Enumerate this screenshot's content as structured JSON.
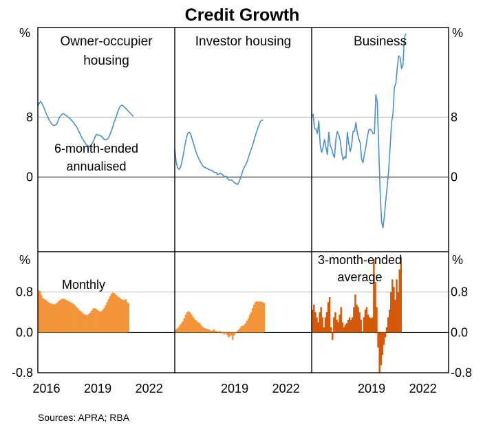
{
  "chart_data": {
    "type": "multi-panel line and bar",
    "title": "Credit Growth",
    "source": "Sources: APRA; RBA",
    "colors": {
      "line": "#4a8fd0",
      "monthly_bar": "#f3953a",
      "average_bar": "#d45a0a",
      "grid": "#b4b4b4"
    },
    "top_axis": {
      "unit": "%",
      "ylim": [
        -10,
        20
      ],
      "ticks": [
        0,
        8
      ],
      "tick_labels": [
        "0",
        "8"
      ]
    },
    "bottom_axis": {
      "unit": "%",
      "ylim": [
        -0.8,
        1.6
      ],
      "ticks": [
        -0.8,
        0.0,
        0.8
      ],
      "tick_labels": [
        "-0.8",
        "0.0",
        "0.8"
      ]
    },
    "x_tick_labels": [
      [
        "2016",
        "2019",
        "2022"
      ],
      [
        "2019",
        "2022"
      ],
      [
        "2019",
        "2022"
      ]
    ],
    "annotations": {
      "line": "6-month-ended annualised",
      "line_lines": [
        "6-month-ended",
        "annualised"
      ],
      "monthly": "Monthly",
      "average": "3-month-ended average",
      "average_lines": [
        "3-month-ended",
        "average"
      ]
    },
    "panels": [
      {
        "title_lines": [
          "Owner-occupier",
          "housing"
        ],
        "x_range": [
          2015.5,
          2023.5
        ],
        "x_ticks": [
          2016,
          2019,
          2022
        ],
        "line_start": 2015.5,
        "line_step": 0.08333,
        "line": [
          9.5,
          9.9,
          10.1,
          9.8,
          9.4,
          8.9,
          8.4,
          8.0,
          7.6,
          7.3,
          7.0,
          6.9,
          6.9,
          7.0,
          7.4,
          7.9,
          8.2,
          8.4,
          8.5,
          8.3,
          8.2,
          8.1,
          7.9,
          7.7,
          7.5,
          7.3,
          7.0,
          6.8,
          6.4,
          6.0,
          5.6,
          5.2,
          4.9,
          4.6,
          4.3,
          4.2,
          4.0,
          4.2,
          4.5,
          4.8,
          5.3,
          5.7,
          5.6,
          5.6,
          5.5,
          5.4,
          5.1,
          5.0,
          5.0,
          5.1,
          5.4,
          5.9,
          6.4,
          7.0,
          7.6,
          8.1,
          8.7,
          9.2,
          9.5,
          9.6,
          9.5,
          9.3,
          9.1,
          8.9,
          8.7,
          8.5,
          8.3,
          8.1
        ],
        "monthly": [
          0.83,
          0.82,
          0.74,
          0.68,
          0.66,
          0.65,
          0.62,
          0.6,
          0.58,
          0.57,
          0.56,
          0.56,
          0.57,
          0.59,
          0.62,
          0.64,
          0.66,
          0.67,
          0.66,
          0.65,
          0.63,
          0.62,
          0.6,
          0.59,
          0.57,
          0.55,
          0.52,
          0.49,
          0.46,
          0.43,
          0.41,
          0.38,
          0.36,
          0.35,
          0.34,
          0.36,
          0.39,
          0.43,
          0.47,
          0.48,
          0.47,
          0.45,
          0.43,
          0.41,
          0.42,
          0.45,
          0.49,
          0.54,
          0.6,
          0.66,
          0.72,
          0.77,
          0.79,
          0.78,
          0.75,
          0.73,
          0.7,
          0.68,
          0.66,
          0.65,
          0.64,
          0.66,
          0.6,
          0.58
        ],
        "monthly_start": 2015.5
      },
      {
        "title_lines": [
          "Investor housing"
        ],
        "x_range": [
          2015.5,
          2023.5
        ],
        "x_ticks": [
          2019,
          2022
        ],
        "line_start": 2015.5,
        "line_step": 0.08333,
        "line": [
          3.8,
          2.0,
          1.2,
          1.0,
          1.3,
          2.0,
          3.0,
          4.1,
          5.1,
          5.8,
          6.0,
          5.8,
          5.2,
          4.6,
          3.9,
          3.3,
          2.8,
          2.4,
          2.0,
          1.7,
          1.4,
          1.3,
          1.2,
          1.1,
          1.0,
          0.9,
          0.9,
          0.7,
          0.6,
          0.6,
          0.3,
          0.4,
          0.5,
          0.4,
          0.2,
          0.0,
          0.1,
          -0.2,
          -0.4,
          -0.4,
          -0.4,
          -0.6,
          -0.8,
          -0.9,
          -1.0,
          -0.7,
          -0.2,
          0.4,
          1.0,
          1.4,
          1.7,
          2.2,
          2.8,
          3.4,
          3.9,
          4.5,
          5.2,
          5.8,
          6.4,
          6.9,
          7.4,
          7.6,
          7.6
        ],
        "monthly": [
          0.05,
          0.07,
          0.1,
          0.14,
          0.18,
          0.22,
          0.28,
          0.35,
          0.4,
          0.42,
          0.4,
          0.36,
          0.32,
          0.28,
          0.25,
          0.22,
          0.2,
          0.18,
          0.14,
          0.11,
          0.09,
          0.08,
          0.07,
          0.06,
          0.05,
          0.03,
          0.04,
          0.06,
          0.03,
          0.02,
          0.01,
          0.03,
          -0.02,
          -0.01,
          -0.04,
          -0.01,
          -0.05,
          -0.1,
          -0.08,
          -0.06,
          -0.15,
          -0.06,
          -0.02,
          0.02,
          0.05,
          0.08,
          0.12,
          0.13,
          0.15,
          0.18,
          0.23,
          0.28,
          0.35,
          0.4,
          0.48,
          0.55,
          0.6,
          0.62,
          0.6,
          0.62,
          0.61,
          0.6,
          0.58
        ],
        "monthly_start": 2015.5
      },
      {
        "title_lines": [
          "Business"
        ],
        "x_range": [
          2015.5,
          2023.5
        ],
        "x_ticks": [
          2019,
          2022
        ],
        "line_start": 2015.5,
        "line_step": 0.08333,
        "line": [
          8.0,
          8.4,
          6.5,
          6.4,
          5.8,
          7.5,
          4.2,
          3.3,
          4.0,
          5.0,
          4.0,
          3.0,
          6.0,
          4.2,
          3.8,
          3.0,
          2.6,
          5.1,
          6.1,
          5.6,
          4.9,
          3.3,
          2.3,
          2.7,
          2.5,
          6.0,
          4.5,
          3.4,
          4.2,
          6.1,
          6.1,
          7.3,
          5.9,
          5.1,
          4.6,
          2.4,
          1.9,
          3.1,
          4.0,
          5.3,
          6.3,
          6.4,
          6.2,
          5.8,
          5.8,
          11.0,
          10.0,
          4.0,
          -2.0,
          -6.0,
          -6.8,
          -5.2,
          -3.0,
          -1.2,
          1.0,
          4.0,
          7.3,
          8.4,
          12.0,
          12.5,
          14.6,
          16.2,
          16.0,
          14.5,
          15.0,
          18.6,
          19.2
        ],
        "avg": [
          0.45,
          0.55,
          0.4,
          0.3,
          0.2,
          0.4,
          0.5,
          0.3,
          0.1,
          0.3,
          0.4,
          0.6,
          0.7,
          0.1,
          -0.15,
          0.3,
          0.4,
          0.25,
          0.2,
          0.35,
          0.5,
          0.2,
          0.1,
          0.15,
          0.18,
          0.25,
          0.3,
          0.25,
          0.3,
          0.5,
          0.75,
          0.55,
          0.5,
          0.4,
          0.25,
          0.02,
          0.3,
          0.45,
          0.5,
          0.35,
          0.3,
          0.28,
          0.3,
          1.45,
          1.0,
          0.5,
          -0.3,
          -0.8,
          -0.65,
          -0.45,
          -0.25,
          -0.1,
          0.1,
          0.3,
          0.45,
          0.8,
          1.05,
          0.9,
          0.65,
          1.05,
          0.8,
          1.25,
          1.5
        ],
        "avg_start": 2015.5
      }
    ]
  }
}
